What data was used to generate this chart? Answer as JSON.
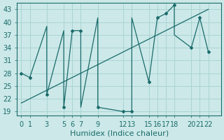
{
  "xlabel": "Humidex (Indice chaleur)",
  "background_color": "#cce8e8",
  "line_color": "#1a6b6b",
  "grid_color": "#aad4d4",
  "xlim": [
    -0.5,
    23.5
  ],
  "ylim": [
    18,
    44.5
  ],
  "yticks": [
    19,
    22,
    25,
    28,
    31,
    34,
    37,
    40,
    43
  ],
  "xticks": [
    0,
    1,
    3,
    5,
    6,
    7,
    9,
    12,
    13,
    15,
    16,
    17,
    18,
    20,
    21,
    22
  ],
  "xtick_labels": [
    "0",
    "1",
    "3",
    "5",
    "6",
    "7",
    "9",
    "12",
    "13",
    "15",
    "16",
    "17",
    "18",
    "20",
    "21",
    "22"
  ],
  "main_x": [
    0,
    1,
    3,
    3,
    5,
    5,
    6,
    7,
    7,
    9,
    9,
    9,
    12,
    13,
    13,
    15,
    16,
    17,
    18,
    18,
    20,
    21,
    22
  ],
  "main_y": [
    28,
    27,
    39,
    23,
    38,
    20,
    38,
    38,
    20,
    41,
    41,
    20,
    19,
    19,
    41,
    26,
    41,
    42,
    44,
    37,
    34,
    41,
    33
  ],
  "trend_x": [
    0,
    22
  ],
  "trend_y": [
    21,
    43
  ],
  "marker_x": [
    0,
    1,
    3,
    5,
    6,
    7,
    9,
    12,
    13,
    15,
    16,
    17,
    18,
    20,
    21,
    22
  ],
  "marker_y": [
    28,
    27,
    23,
    20,
    38,
    38,
    20,
    19,
    19,
    26,
    41,
    42,
    44,
    34,
    41,
    33
  ],
  "font_size_label": 8,
  "font_size_tick": 7
}
